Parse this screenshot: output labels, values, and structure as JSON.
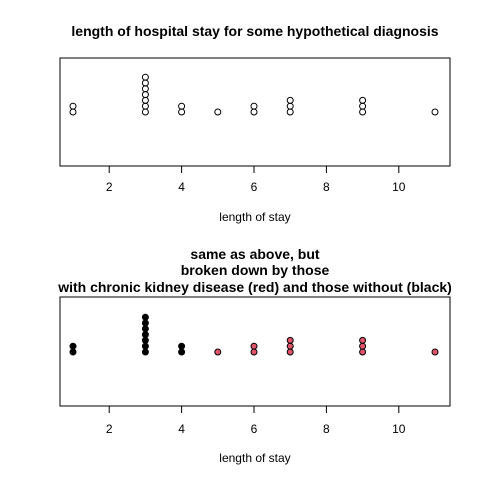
{
  "chart_data": [
    {
      "type": "scatter",
      "subtype": "stripchart-stacked",
      "title": [
        "length of hospital stay for some hypothetical diagnosis"
      ],
      "xlabel": "length of stay",
      "xlim": [
        1,
        11
      ],
      "xticks": [
        2,
        4,
        6,
        8,
        10
      ],
      "series": [
        {
          "color": "#000000",
          "fill": "none",
          "x": [
            1,
            1,
            3,
            3,
            3,
            3,
            3,
            3,
            3,
            4,
            4,
            5,
            6,
            6,
            7,
            7,
            7,
            9,
            9,
            9,
            11
          ]
        }
      ]
    },
    {
      "type": "scatter",
      "subtype": "stripchart-stacked",
      "title": [
        "same as above, but",
        "broken down by those",
        "with chronic kidney disease (red) and those without (black)"
      ],
      "xlabel": "length of stay",
      "xlim": [
        1,
        11
      ],
      "xticks": [
        2,
        4,
        6,
        8,
        10
      ],
      "series": [
        {
          "color": "#000000",
          "fill": "#000000",
          "x": [
            1,
            1,
            3,
            3,
            3,
            3,
            3,
            3,
            3,
            4,
            4
          ]
        },
        {
          "color": "#000000",
          "fill": "#DF536B",
          "x": [
            5,
            6,
            6,
            7,
            7,
            7,
            9,
            9,
            9,
            11
          ]
        }
      ]
    }
  ]
}
